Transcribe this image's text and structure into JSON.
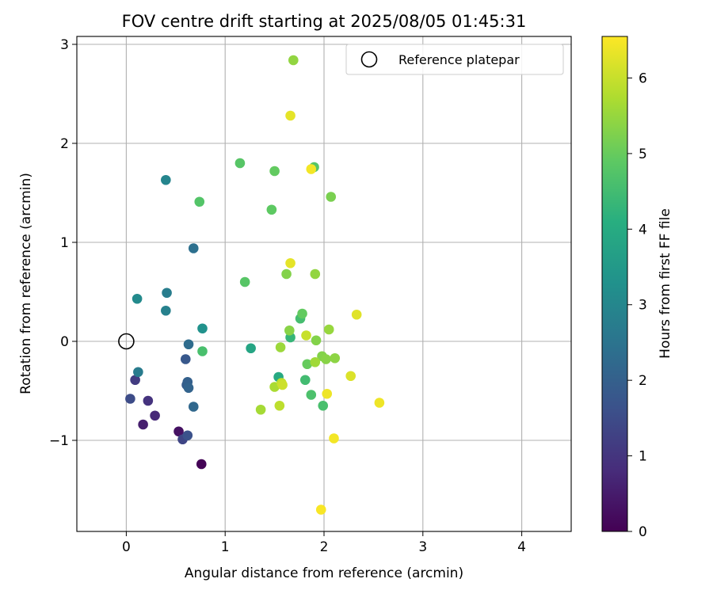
{
  "chart_data": {
    "type": "scatter",
    "title": "FOV centre drift starting at 2025/08/05 01:45:31",
    "xlabel": "Angular distance from reference (arcmin)",
    "ylabel": "Rotation from reference (arcmin)",
    "xlim": [
      -0.5,
      4.5
    ],
    "ylim": [
      -1.92,
      3.08
    ],
    "xticks": [
      0,
      1,
      2,
      3,
      4
    ],
    "xtick_labels": [
      "0",
      "1",
      "2",
      "3",
      "4"
    ],
    "yticks": [
      -1,
      0,
      1,
      2,
      3
    ],
    "ytick_labels": [
      "−1",
      "0",
      "1",
      "2",
      "3"
    ],
    "grid": true,
    "legend": {
      "position": "top-right",
      "label": "Reference platepar"
    },
    "colorbar": {
      "label": "Hours from first FF file",
      "range": [
        0,
        6.55
      ],
      "ticks": [
        0,
        1,
        2,
        3,
        4,
        5,
        6
      ],
      "tick_labels": [
        "0",
        "1",
        "2",
        "3",
        "4",
        "5",
        "6"
      ],
      "colormap": "viridis"
    },
    "reference_point": {
      "x": 0,
      "y": 0
    },
    "points": [
      {
        "x": 0.76,
        "y": -1.24,
        "h": 0.05
      },
      {
        "x": 0.53,
        "y": -0.91,
        "h": 0.3
      },
      {
        "x": 0.17,
        "y": -0.84,
        "h": 0.55
      },
      {
        "x": 0.29,
        "y": -0.75,
        "h": 0.75
      },
      {
        "x": 0.22,
        "y": -0.6,
        "h": 0.95
      },
      {
        "x": 0.09,
        "y": -0.39,
        "h": 1.15
      },
      {
        "x": 0.57,
        "y": -0.99,
        "h": 1.35
      },
      {
        "x": 0.04,
        "y": -0.58,
        "h": 1.5
      },
      {
        "x": 0.62,
        "y": -0.95,
        "h": 1.65
      },
      {
        "x": 0.6,
        "y": -0.18,
        "h": 1.8
      },
      {
        "x": 0.61,
        "y": -0.44,
        "h": 1.9
      },
      {
        "x": 0.62,
        "y": -0.41,
        "h": 2.0
      },
      {
        "x": 0.63,
        "y": -0.47,
        "h": 2.1
      },
      {
        "x": 0.68,
        "y": -0.66,
        "h": 2.2
      },
      {
        "x": 0.63,
        "y": -0.03,
        "h": 2.3
      },
      {
        "x": 0.68,
        "y": 0.94,
        "h": 2.4
      },
      {
        "x": 0.12,
        "y": -0.31,
        "h": 2.7
      },
      {
        "x": 0.41,
        "y": 0.49,
        "h": 2.75
      },
      {
        "x": 0.4,
        "y": 0.31,
        "h": 2.85
      },
      {
        "x": 0.4,
        "y": 1.63,
        "h": 2.95
      },
      {
        "x": 0.11,
        "y": 0.43,
        "h": 3.1
      },
      {
        "x": 0.77,
        "y": 0.13,
        "h": 3.3
      },
      {
        "x": 1.26,
        "y": -0.07,
        "h": 3.85
      },
      {
        "x": 1.54,
        "y": -0.36,
        "h": 3.95
      },
      {
        "x": 1.66,
        "y": 0.04,
        "h": 4.3
      },
      {
        "x": 1.81,
        "y": -0.39,
        "h": 4.5
      },
      {
        "x": 1.76,
        "y": 0.23,
        "h": 4.55
      },
      {
        "x": 1.99,
        "y": -0.65,
        "h": 4.6
      },
      {
        "x": 1.87,
        "y": -0.54,
        "h": 4.65
      },
      {
        "x": 0.77,
        "y": -0.1,
        "h": 4.6
      },
      {
        "x": 0.74,
        "y": 1.41,
        "h": 4.75
      },
      {
        "x": 1.15,
        "y": 1.8,
        "h": 4.8
      },
      {
        "x": 1.9,
        "y": 1.76,
        "h": 4.8
      },
      {
        "x": 1.2,
        "y": 0.6,
        "h": 4.8
      },
      {
        "x": 1.47,
        "y": 1.33,
        "h": 4.9
      },
      {
        "x": 1.5,
        "y": 1.72,
        "h": 4.95
      },
      {
        "x": 1.78,
        "y": 0.28,
        "h": 4.95
      },
      {
        "x": 1.83,
        "y": -0.23,
        "h": 5.0
      },
      {
        "x": 2.07,
        "y": 1.46,
        "h": 5.2
      },
      {
        "x": 1.62,
        "y": 0.68,
        "h": 5.3
      },
      {
        "x": 1.65,
        "y": 0.11,
        "h": 5.35
      },
      {
        "x": 1.92,
        "y": 0.01,
        "h": 5.3
      },
      {
        "x": 1.98,
        "y": -0.15,
        "h": 5.3
      },
      {
        "x": 2.02,
        "y": -0.18,
        "h": 5.35
      },
      {
        "x": 2.11,
        "y": -0.17,
        "h": 5.4
      },
      {
        "x": 1.91,
        "y": 0.68,
        "h": 5.45
      },
      {
        "x": 1.69,
        "y": 2.84,
        "h": 5.45
      },
      {
        "x": 2.05,
        "y": 0.12,
        "h": 5.5
      },
      {
        "x": 1.56,
        "y": -0.06,
        "h": 5.55
      },
      {
        "x": 1.91,
        "y": -0.21,
        "h": 5.6
      },
      {
        "x": 1.36,
        "y": -0.69,
        "h": 5.65
      },
      {
        "x": 1.5,
        "y": -0.46,
        "h": 5.7
      },
      {
        "x": 1.55,
        "y": -0.65,
        "h": 5.9
      },
      {
        "x": 1.57,
        "y": -0.42,
        "h": 5.95
      },
      {
        "x": 1.58,
        "y": -0.44,
        "h": 6.05
      },
      {
        "x": 1.82,
        "y": 0.06,
        "h": 6.0
      },
      {
        "x": 2.27,
        "y": -0.35,
        "h": 6.2
      },
      {
        "x": 2.33,
        "y": 0.27,
        "h": 6.25
      },
      {
        "x": 1.66,
        "y": 0.79,
        "h": 6.3
      },
      {
        "x": 1.66,
        "y": 2.28,
        "h": 6.3
      },
      {
        "x": 2.03,
        "y": -0.53,
        "h": 6.4
      },
      {
        "x": 1.87,
        "y": 1.74,
        "h": 6.45
      },
      {
        "x": 2.56,
        "y": -0.62,
        "h": 6.4
      },
      {
        "x": 2.1,
        "y": -0.98,
        "h": 6.45
      },
      {
        "x": 1.97,
        "y": -1.7,
        "h": 6.5
      }
    ]
  }
}
